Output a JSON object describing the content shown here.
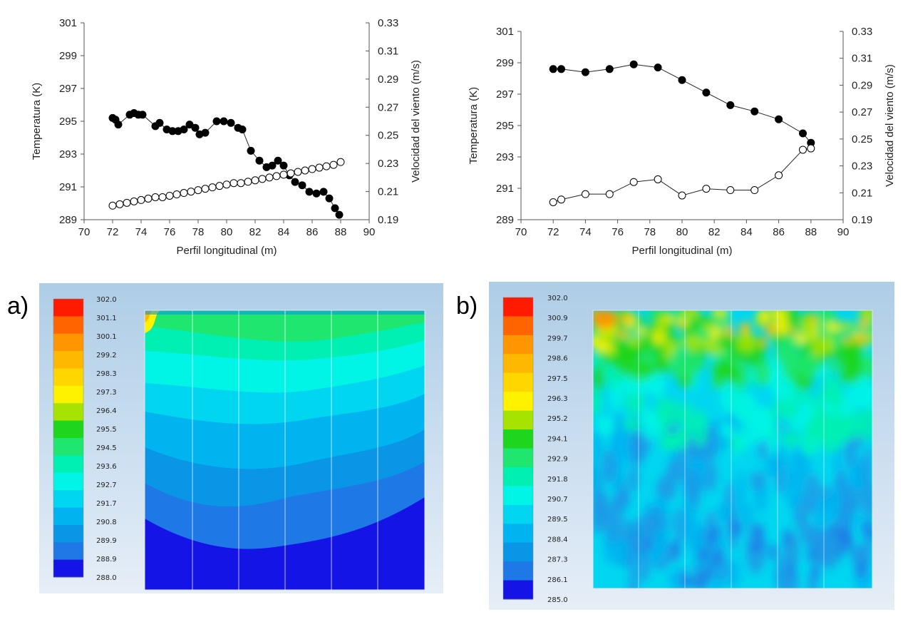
{
  "chart_data": [
    {
      "type": "scatter",
      "xlabel": "Perfil longitudinal (m)",
      "ylabel": "Temperatura (K)",
      "y2label": "Velocidad del viento (m/s)",
      "xlim": [
        70,
        90
      ],
      "ylim": [
        289,
        301
      ],
      "y2lim": [
        0.19,
        0.33
      ],
      "x_ticks": [
        "70",
        "72",
        "74",
        "76",
        "78",
        "80",
        "82",
        "84",
        "86",
        "88",
        "90"
      ],
      "y_ticks": [
        "289",
        "291",
        "293",
        "295",
        "297",
        "299",
        "301"
      ],
      "y2_ticks": [
        "0.19",
        "0.21",
        "0.23",
        "0.25",
        "0.27",
        "0.29",
        "0.31",
        "0.33"
      ],
      "grid": false,
      "series": [
        {
          "axis": "y",
          "marker": "filled-circle",
          "x": [
            72,
            72.2,
            72.4,
            73.2,
            73.5,
            73.8,
            74.1,
            75,
            75.3,
            75.8,
            76.2,
            76.6,
            77,
            77.4,
            77.8,
            78.1,
            78.5,
            79.3,
            79.8,
            80.3,
            80.8,
            81.1,
            81.7,
            82.3,
            82.8,
            83.2,
            83.6,
            84,
            84.4,
            84.8,
            85.3,
            85.8,
            86.3,
            86.8,
            87.2,
            87.6,
            87.9
          ],
          "y": [
            295.2,
            295.1,
            294.8,
            295.4,
            295.5,
            295.4,
            295.4,
            294.7,
            294.9,
            294.5,
            294.4,
            294.4,
            294.5,
            294.8,
            294.6,
            294.2,
            294.3,
            295,
            295,
            294.9,
            294.6,
            294.5,
            293.2,
            292.6,
            292.2,
            292.3,
            292.6,
            292.3,
            291.7,
            291.3,
            291.1,
            290.7,
            290.6,
            290.7,
            290.3,
            289.7,
            289.3
          ]
        },
        {
          "axis": "y2",
          "marker": "open-circle",
          "x": [
            72,
            72.5,
            73,
            73.5,
            74,
            74.5,
            75,
            75.5,
            76,
            76.5,
            77,
            77.5,
            78,
            78.5,
            79,
            79.5,
            80,
            80.5,
            81,
            81.5,
            82,
            82.5,
            83,
            83.5,
            84,
            84.5,
            85,
            85.5,
            86,
            86.5,
            87,
            87.5,
            88
          ],
          "y": [
            0.2,
            0.201,
            0.202,
            0.203,
            0.204,
            0.205,
            0.206,
            0.206,
            0.207,
            0.208,
            0.209,
            0.21,
            0.211,
            0.212,
            0.213,
            0.214,
            0.215,
            0.216,
            0.216,
            0.217,
            0.218,
            0.219,
            0.22,
            0.221,
            0.222,
            0.223,
            0.224,
            0.225,
            0.226,
            0.227,
            0.228,
            0.229,
            0.231
          ]
        }
      ]
    },
    {
      "type": "line",
      "xlabel": "Perfil longitudinal (m)",
      "ylabel": "Temperatura (K)",
      "y2label": "Velocidad del viento (m/s)",
      "xlim": [
        70,
        90
      ],
      "ylim": [
        289,
        301
      ],
      "y2lim": [
        0.19,
        0.33
      ],
      "x_ticks": [
        "70",
        "72",
        "74",
        "76",
        "78",
        "80",
        "82",
        "84",
        "86",
        "88",
        "90"
      ],
      "y_ticks": [
        "289",
        "291",
        "293",
        "295",
        "297",
        "299",
        "301"
      ],
      "y2_ticks": [
        "0.19",
        "0.21",
        "0.23",
        "0.25",
        "0.27",
        "0.29",
        "0.31",
        "0.33"
      ],
      "grid": false,
      "series": [
        {
          "axis": "y",
          "marker": "filled-circle",
          "x": [
            72,
            72.5,
            74,
            75.5,
            77,
            78.5,
            80,
            81.5,
            83,
            84.5,
            86,
            87.5,
            88
          ],
          "y": [
            298.6,
            298.6,
            298.4,
            298.6,
            298.9,
            298.7,
            297.9,
            297.1,
            296.3,
            295.9,
            295.4,
            294.5,
            293.9
          ]
        },
        {
          "axis": "y2",
          "marker": "open-circle",
          "x": [
            72,
            72.5,
            74,
            75.5,
            77,
            78.5,
            80,
            81.5,
            83,
            84.5,
            86,
            87.5,
            88
          ],
          "y": [
            0.203,
            0.205,
            0.209,
            0.209,
            0.218,
            0.22,
            0.208,
            0.213,
            0.212,
            0.212,
            0.223,
            0.242,
            0.243
          ]
        }
      ]
    }
  ],
  "contour_a": {
    "panel_letter": "a)",
    "scale_labels": [
      "302.0",
      "301.1",
      "300.1",
      "299.2",
      "298.3",
      "297.3",
      "296.4",
      "295.5",
      "294.5",
      "293.6",
      "292.7",
      "291.7",
      "290.8",
      "289.9",
      "288.9",
      "288.0"
    ],
    "scale_colors": [
      "#ff1a00",
      "#ff6400",
      "#ff9500",
      "#ffb800",
      "#ffd600",
      "#fff200",
      "#a6e300",
      "#1ed61e",
      "#1ee66e",
      "#00f0b4",
      "#00f5e6",
      "#00d6f0",
      "#00b4f0",
      "#0a96e6",
      "#1e78e6",
      "#1414e6"
    ]
  },
  "contour_b": {
    "panel_letter": "b)",
    "scale_labels": [
      "302.0",
      "300.9",
      "299.7",
      "298.6",
      "297.5",
      "296.3",
      "295.2",
      "294.1",
      "292.9",
      "291.8",
      "290.7",
      "289.5",
      "288.4",
      "287.3",
      "286.1",
      "285.0"
    ],
    "scale_colors": [
      "#ff1a00",
      "#ff6400",
      "#ff9500",
      "#ffb800",
      "#ffd600",
      "#fff200",
      "#a6e300",
      "#1ed61e",
      "#1ee66e",
      "#00f0b4",
      "#00f5e6",
      "#00d6f0",
      "#00b4f0",
      "#0a96e6",
      "#1e78e6",
      "#1414e6"
    ]
  }
}
